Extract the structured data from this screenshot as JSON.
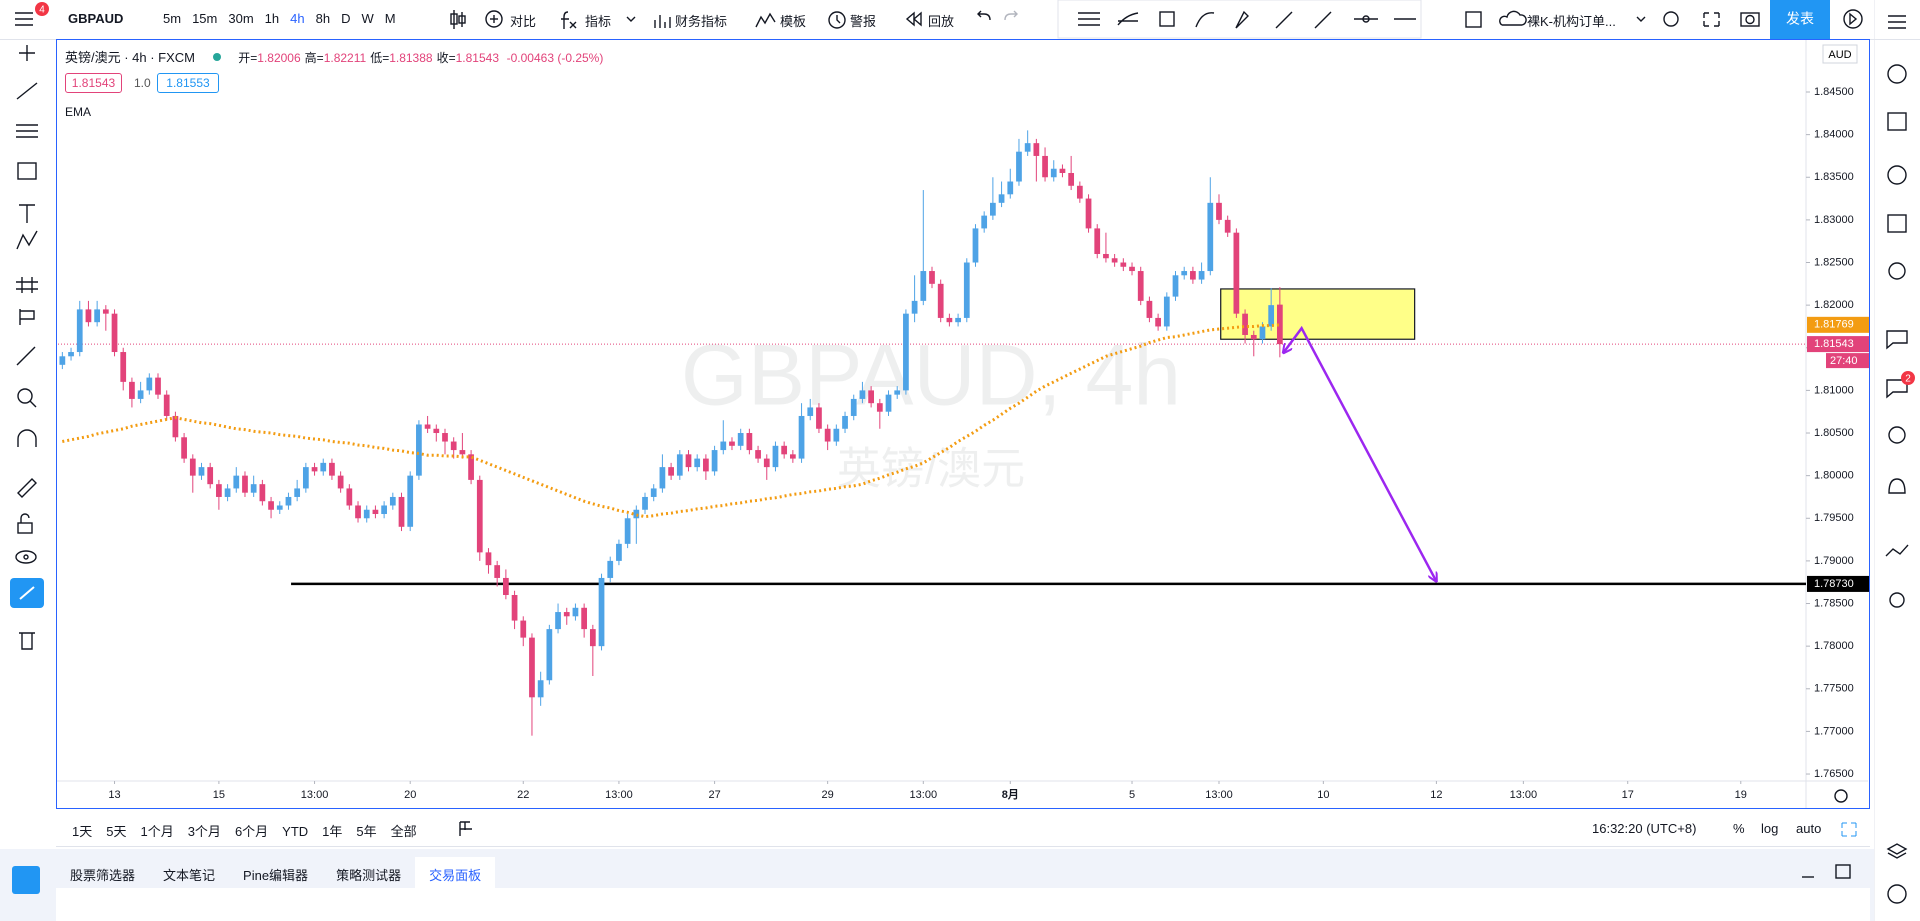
{
  "toolbar": {
    "menu_badge": "4",
    "symbol": "GBPAUD",
    "intervals": [
      "5m",
      "15m",
      "30m",
      "1h",
      "4h",
      "8h",
      "D",
      "W",
      "M"
    ],
    "buttons": [
      "对比",
      "指标",
      "财务指标",
      "模板",
      "警报",
      "回放"
    ],
    "layout_name": "裸K-机构订单...",
    "publish": "发表"
  },
  "legend": {
    "title": "英镑/澳元 · 4h · FXCM",
    "ohlc": [
      {
        "label": "开=",
        "value": "1.82006"
      },
      {
        "label": "高=",
        "value": "1.82211"
      },
      {
        "label": "低=",
        "value": "1.81388"
      },
      {
        "label": "收=",
        "value": "1.81543"
      }
    ],
    "change": "-0.00463 (-0.25%)",
    "sell": "1.81543",
    "spread": "1.0",
    "buy": "1.81553"
  },
  "watermark": {
    "symbol": "GBPAUD, 4h",
    "name": "英镑/澳元"
  },
  "chart_data": {
    "type": "candlestick",
    "currency": "AUD",
    "up_color": "#4ea3e6",
    "down_color": "#e2437a",
    "open": [
      1.813,
      1.814,
      1.8145,
      1.8195,
      1.818,
      1.8195,
      1.819,
      1.8145,
      1.811,
      1.809,
      1.81,
      1.8115,
      1.8095,
      1.807,
      1.8045,
      1.802,
      1.8,
      1.801,
      1.799,
      1.7975,
      1.7985,
      1.8,
      1.798,
      1.799,
      1.797,
      1.796,
      1.7965,
      1.7975,
      1.7985,
      1.801,
      1.8005,
      1.8015,
      1.8,
      1.7985,
      1.7965,
      1.795,
      1.796,
      1.7955,
      1.7965,
      1.7975,
      1.794,
      1.8,
      1.806,
      1.8055,
      1.805,
      1.804,
      1.803,
      1.8025,
      1.7995,
      1.791,
      1.7895,
      1.788,
      1.786,
      1.783,
      1.781,
      1.774,
      1.776,
      1.782,
      1.784,
      1.7835,
      1.7845,
      1.782,
      1.78,
      1.788,
      1.79,
      1.792,
      1.795,
      1.796,
      1.7975,
      1.7985,
      1.801,
      1.8,
      1.8025,
      1.801,
      1.802,
      1.8005,
      1.803,
      1.804,
      1.8035,
      1.805,
      1.803,
      1.802,
      1.801,
      1.8035,
      1.8025,
      1.802,
      1.807,
      1.808,
      1.8055,
      1.804,
      1.8055,
      1.807,
      1.809,
      1.81,
      1.8085,
      1.8075,
      1.8095,
      1.81,
      1.819,
      1.8205,
      1.824,
      1.8225,
      1.8185,
      1.818,
      1.8185,
      1.825,
      1.829,
      1.8305,
      1.832,
      1.833,
      1.8345,
      1.838,
      1.839,
      1.8375,
      1.835,
      1.836,
      1.8355,
      1.834,
      1.8325,
      1.829,
      1.826,
      1.8255,
      1.825,
      1.8245,
      1.824,
      1.8205,
      1.8185,
      1.8175,
      1.821,
      1.8235,
      1.824,
      1.823,
      1.824,
      1.832,
      1.83,
      1.8285,
      1.819,
      1.8165,
      1.816,
      1.8175,
      1.82006
    ],
    "high": [
      1.8145,
      1.815,
      1.8205,
      1.8205,
      1.8205,
      1.82,
      1.8195,
      1.815,
      1.8115,
      1.811,
      1.812,
      1.812,
      1.81,
      1.8075,
      1.805,
      1.8025,
      1.8015,
      1.8015,
      1.7995,
      1.799,
      1.801,
      1.8005,
      1.8,
      1.7995,
      1.7975,
      1.797,
      1.798,
      1.7995,
      1.8015,
      1.8015,
      1.802,
      1.802,
      1.8005,
      1.799,
      1.797,
      1.7965,
      1.7965,
      1.797,
      1.798,
      1.798,
      1.8005,
      1.8065,
      1.807,
      1.806,
      1.8055,
      1.8045,
      1.805,
      1.803,
      1.8,
      1.7915,
      1.79,
      1.789,
      1.7865,
      1.7835,
      1.7815,
      1.777,
      1.7825,
      1.785,
      1.7845,
      1.785,
      1.785,
      1.7825,
      1.7885,
      1.7905,
      1.7925,
      1.7955,
      1.7965,
      1.798,
      1.799,
      1.8025,
      1.8015,
      1.803,
      1.803,
      1.8025,
      1.8025,
      1.8035,
      1.8065,
      1.8045,
      1.8055,
      1.8055,
      1.8035,
      1.8025,
      1.804,
      1.804,
      1.803,
      1.8085,
      1.809,
      1.8085,
      1.806,
      1.806,
      1.8075,
      1.8095,
      1.811,
      1.8105,
      1.809,
      1.81,
      1.8105,
      1.8195,
      1.8235,
      1.8335,
      1.8245,
      1.823,
      1.819,
      1.819,
      1.8255,
      1.8295,
      1.831,
      1.835,
      1.8345,
      1.836,
      1.8395,
      1.8405,
      1.8395,
      1.8385,
      1.837,
      1.8365,
      1.8375,
      1.8345,
      1.833,
      1.8295,
      1.8285,
      1.826,
      1.8255,
      1.825,
      1.8245,
      1.821,
      1.819,
      1.8215,
      1.824,
      1.8245,
      1.8245,
      1.825,
      1.835,
      1.833,
      1.8305,
      1.829,
      1.8195,
      1.817,
      1.818,
      1.822,
      1.82211
    ],
    "low": [
      1.8125,
      1.8135,
      1.814,
      1.8175,
      1.8175,
      1.817,
      1.814,
      1.81,
      1.808,
      1.8085,
      1.8095,
      1.809,
      1.8065,
      1.804,
      1.8015,
      1.798,
      1.7995,
      1.7985,
      1.796,
      1.797,
      1.798,
      1.7975,
      1.7975,
      1.7965,
      1.795,
      1.7955,
      1.796,
      1.797,
      1.798,
      1.8,
      1.8,
      1.7995,
      1.798,
      1.796,
      1.7945,
      1.7945,
      1.795,
      1.795,
      1.796,
      1.7935,
      1.7935,
      1.7995,
      1.805,
      1.804,
      1.8025,
      1.802,
      1.802,
      1.799,
      1.79,
      1.7885,
      1.787,
      1.7855,
      1.782,
      1.78,
      1.7695,
      1.773,
      1.7755,
      1.7815,
      1.7825,
      1.783,
      1.781,
      1.7765,
      1.7795,
      1.7875,
      1.7895,
      1.7915,
      1.792,
      1.7955,
      1.797,
      1.798,
      1.7995,
      1.7995,
      1.8005,
      1.8005,
      1.7995,
      1.8,
      1.8025,
      1.803,
      1.803,
      1.8025,
      1.8015,
      1.7995,
      1.8005,
      1.802,
      1.8015,
      1.8015,
      1.8065,
      1.805,
      1.803,
      1.8035,
      1.805,
      1.8065,
      1.8085,
      1.808,
      1.8055,
      1.807,
      1.809,
      1.8095,
      1.818,
      1.82,
      1.822,
      1.818,
      1.8175,
      1.8175,
      1.818,
      1.8245,
      1.8285,
      1.83,
      1.8315,
      1.8325,
      1.834,
      1.8375,
      1.8345,
      1.8345,
      1.8345,
      1.835,
      1.8335,
      1.832,
      1.8285,
      1.8255,
      1.825,
      1.8245,
      1.824,
      1.8235,
      1.82,
      1.818,
      1.817,
      1.817,
      1.8205,
      1.823,
      1.8225,
      1.8225,
      1.8235,
      1.8295,
      1.828,
      1.8185,
      1.8155,
      1.814,
      1.8155,
      1.817,
      1.81388
    ],
    "close": [
      1.814,
      1.8145,
      1.8195,
      1.818,
      1.8195,
      1.819,
      1.8145,
      1.811,
      1.809,
      1.81,
      1.8115,
      1.8095,
      1.807,
      1.8045,
      1.802,
      1.8,
      1.801,
      1.799,
      1.7975,
      1.7985,
      1.8,
      1.798,
      1.799,
      1.797,
      1.796,
      1.7965,
      1.7975,
      1.7985,
      1.801,
      1.8005,
      1.8015,
      1.8,
      1.7985,
      1.7965,
      1.795,
      1.796,
      1.7955,
      1.7965,
      1.7975,
      1.794,
      1.8,
      1.806,
      1.8055,
      1.805,
      1.804,
      1.803,
      1.8025,
      1.7995,
      1.791,
      1.7895,
      1.788,
      1.786,
      1.783,
      1.781,
      1.774,
      1.776,
      1.782,
      1.784,
      1.7835,
      1.7845,
      1.782,
      1.78,
      1.788,
      1.79,
      1.792,
      1.795,
      1.796,
      1.7975,
      1.7985,
      1.801,
      1.8,
      1.8025,
      1.801,
      1.802,
      1.8005,
      1.803,
      1.804,
      1.8035,
      1.805,
      1.803,
      1.802,
      1.801,
      1.8035,
      1.8025,
      1.802,
      1.807,
      1.808,
      1.8055,
      1.804,
      1.8055,
      1.807,
      1.809,
      1.81,
      1.8085,
      1.8075,
      1.8095,
      1.81,
      1.819,
      1.8205,
      1.824,
      1.8225,
      1.8185,
      1.818,
      1.8185,
      1.825,
      1.829,
      1.8305,
      1.832,
      1.833,
      1.8345,
      1.838,
      1.839,
      1.8375,
      1.835,
      1.836,
      1.8355,
      1.834,
      1.8325,
      1.829,
      1.826,
      1.8255,
      1.825,
      1.8245,
      1.824,
      1.8205,
      1.8185,
      1.8175,
      1.821,
      1.8235,
      1.824,
      1.823,
      1.824,
      1.832,
      1.83,
      1.8285,
      1.819,
      1.8165,
      1.816,
      1.8175,
      1.82,
      1.81543
    ],
    "ema": {
      "name": "EMA",
      "color": "#f39c12",
      "values": [
        1.804,
        1.8042,
        1.8044,
        1.8046,
        1.8049,
        1.8051,
        1.8053,
        1.8055,
        1.8058,
        1.806,
        1.8062,
        1.8064,
        1.8066,
        1.8068,
        1.8066,
        1.8064,
        1.8062,
        1.8061,
        1.8059,
        1.8057,
        1.8055,
        1.8054,
        1.8052,
        1.8051,
        1.805,
        1.8048,
        1.8047,
        1.8046,
        1.8044,
        1.8043,
        1.8042,
        1.804,
        1.8039,
        1.8038,
        1.8036,
        1.8035,
        1.8033,
        1.8032,
        1.803,
        1.8029,
        1.8027,
        1.8026,
        1.8024,
        1.8024,
        1.8023,
        1.8023,
        1.8022,
        1.8022,
        1.8018,
        1.8014,
        1.801,
        1.8006,
        1.8002,
        1.7998,
        1.7994,
        1.799,
        1.7986,
        1.7982,
        1.7978,
        1.7974,
        1.797,
        1.7967,
        1.7964,
        1.7962,
        1.7959,
        1.7957,
        1.7954,
        1.7952,
        1.7953,
        1.7955,
        1.7956,
        1.7958,
        1.7959,
        1.7961,
        1.7962,
        1.7964,
        1.7965,
        1.7967,
        1.7968,
        1.797,
        1.7971,
        1.7973,
        1.7974,
        1.7976,
        1.7978,
        1.7979,
        1.7981,
        1.7982,
        1.7984,
        1.7985,
        1.7987,
        1.7988,
        1.799,
        1.7994,
        1.7997,
        1.8001,
        1.8004,
        1.8008,
        1.8011,
        1.8015,
        1.8021,
        1.8027,
        1.8033,
        1.804,
        1.8046,
        1.8052,
        1.8059,
        1.8065,
        1.8072,
        1.8079,
        1.8085,
        1.8092,
        1.8099,
        1.8105,
        1.811,
        1.8115,
        1.812,
        1.8125,
        1.813,
        1.8135,
        1.814,
        1.8143,
        1.8146,
        1.8149,
        1.8152,
        1.8156,
        1.8159,
        1.8162,
        1.8163,
        1.8165,
        1.8167,
        1.8169,
        1.8171,
        1.8172,
        1.8173,
        1.8174,
        1.8175,
        1.8175,
        1.8176,
        1.8176,
        1.81769
      ]
    },
    "xlim": [
      -0.5,
      200.5
    ],
    "xticks": [
      {
        "value": 6,
        "label": "13"
      },
      {
        "value": 18,
        "label": "15"
      },
      {
        "value": 29,
        "label": "13:00"
      },
      {
        "value": 40,
        "label": "20"
      },
      {
        "value": 53,
        "label": "22"
      },
      {
        "value": 64,
        "label": "13:00"
      },
      {
        "value": 75,
        "label": "27"
      },
      {
        "value": 88,
        "label": "29"
      },
      {
        "value": 99,
        "label": "13:00"
      },
      {
        "value": 109,
        "label": "8月"
      },
      {
        "value": 123,
        "label": "5"
      },
      {
        "value": 133,
        "label": "13:00"
      },
      {
        "value": 145,
        "label": "10"
      },
      {
        "value": 158,
        "label": "12"
      },
      {
        "value": 168,
        "label": "13:00"
      },
      {
        "value": 180,
        "label": "17"
      },
      {
        "value": 193,
        "label": "19"
      }
    ],
    "ylim": [
      1.7643,
      1.8511
    ],
    "yticks": [
      {
        "value": 1.765,
        "label": "1.76500"
      },
      {
        "value": 1.77,
        "label": "1.77000"
      },
      {
        "value": 1.775,
        "label": "1.77500"
      },
      {
        "value": 1.78,
        "label": "1.78000"
      },
      {
        "value": 1.785,
        "label": "1.78500"
      },
      {
        "value": 1.79,
        "label": "1.79000"
      },
      {
        "value": 1.795,
        "label": "1.79500"
      },
      {
        "value": 1.8,
        "label": "1.80000"
      },
      {
        "value": 1.805,
        "label": "1.80500"
      },
      {
        "value": 1.81,
        "label": "1.81000"
      },
      {
        "value": 1.815,
        "label": "1.81500"
      },
      {
        "value": 1.82,
        "label": "1.82000"
      },
      {
        "value": 1.825,
        "label": "1.82500"
      },
      {
        "value": 1.83,
        "label": "1.83000"
      },
      {
        "value": 1.835,
        "label": "1.83500"
      },
      {
        "value": 1.84,
        "label": "1.84000"
      },
      {
        "value": 1.845,
        "label": "1.84500"
      }
    ],
    "grid": false,
    "countdown": "27:40",
    "hline": {
      "value": 1.7873,
      "label": "1.78730",
      "from": 26.3
    },
    "zone": {
      "x": [
        133.2,
        155.5
      ],
      "y": [
        1.816,
        1.8219
      ],
      "color": "#ffff88"
    },
    "arrow": {
      "x": [
        140.4,
        142.5,
        158
      ],
      "y": [
        1.8144,
        1.8173,
        1.7876
      ],
      "color": "#9c27f0"
    }
  },
  "bottom_bar": {
    "ranges": [
      "1天",
      "5天",
      "1个月",
      "3个月",
      "6个月",
      "YTD",
      "1年",
      "5年",
      "全部"
    ],
    "clock": "16:32:20 (UTC+8)",
    "percent": "%",
    "log": "log",
    "auto": "auto"
  },
  "tabs": [
    "股票筛选器",
    "文本笔记",
    "Pine编辑器",
    "策略测试器",
    "交易面板"
  ],
  "right_badge": "2"
}
